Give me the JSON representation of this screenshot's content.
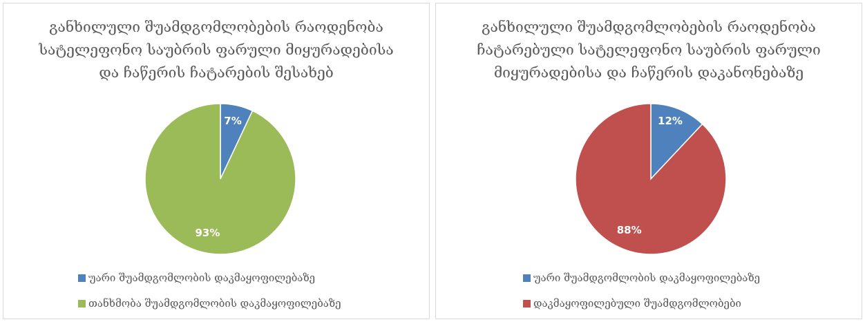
{
  "chart_data": [
    {
      "type": "pie",
      "title_lines": [
        "განხილული შუამდგომლობების რაოდენობა",
        "სატელეფონო საუბრის ფარული მიყურადებისა",
        "და ჩაწერის ჩატარების შესახებ"
      ],
      "slices": [
        {
          "label": "უარი შუამდგომლობის დაკმაყოფილებაზე",
          "value": 7,
          "value_label": "7%",
          "color": "#4f81bd"
        },
        {
          "label": "თანხმობა შუამდგომლობის დაკმაყოფილებაზე",
          "value": 93,
          "value_label": "93%",
          "color": "#9bbb59"
        }
      ],
      "legend_position": "bottom"
    },
    {
      "type": "pie",
      "title_lines": [
        "განხილული შუამდგომლობების რაოდენობა",
        "ჩატარებული სატელეფონო საუბრის ფარული",
        "მიყურადებისა და ჩაწერის დაკანონებაზე"
      ],
      "slices": [
        {
          "label": "უარი შუამდგომლობის დაკმაყოფილებაზე",
          "value": 12,
          "value_label": "12%",
          "color": "#4f81bd"
        },
        {
          "label": "დაკმაყოფილებული შუამდგომლობები",
          "value": 88,
          "value_label": "88%",
          "color": "#c0504d"
        }
      ],
      "legend_position": "bottom"
    }
  ]
}
